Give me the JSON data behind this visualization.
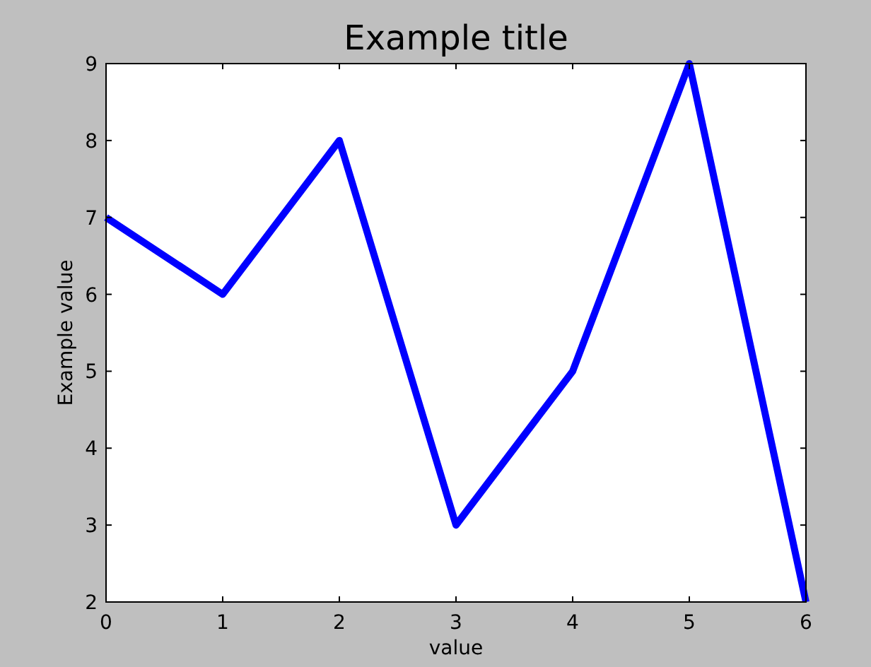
{
  "chart_data": {
    "type": "line",
    "title": "Example title",
    "xlabel": "value",
    "ylabel": "Example value",
    "x": [
      0,
      1,
      2,
      3,
      4,
      5,
      6
    ],
    "series": [
      {
        "color": "#0000ff",
        "values": [
          7,
          6,
          8,
          3,
          5,
          9,
          2
        ]
      }
    ],
    "xlim": [
      0,
      6
    ],
    "ylim": [
      2,
      9
    ],
    "xticks": [
      0,
      1,
      2,
      3,
      4,
      5,
      6
    ],
    "yticks": [
      2,
      3,
      4,
      5,
      6,
      7,
      8,
      9
    ],
    "grid": false,
    "marker": "none",
    "line_style": "solid"
  }
}
